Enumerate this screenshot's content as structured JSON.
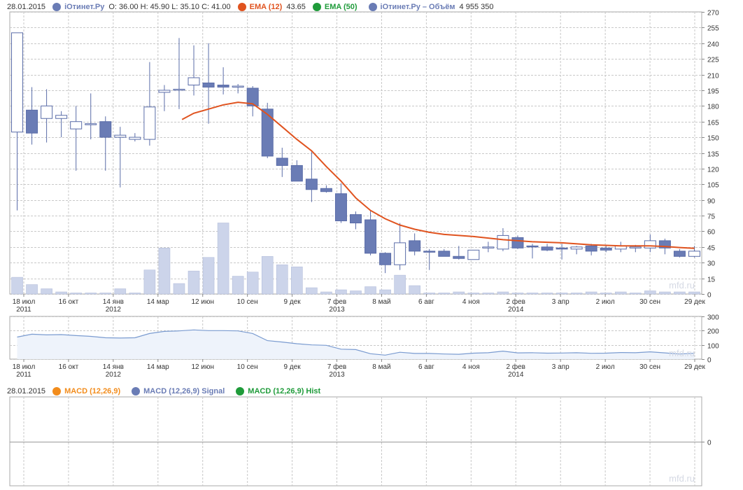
{
  "legend_top": {
    "date": "28.01.2015",
    "items": [
      {
        "name": "iОтинет.Ру",
        "values": "O: 36.00   H: 45.90   L: 35.10   C: 41.00",
        "color": "#6a7cb5"
      },
      {
        "name": "EMA (12)",
        "values": "43.65",
        "color": "#e0531f"
      },
      {
        "name": "EMA (50)",
        "values": "",
        "color": "#1f9b3a"
      },
      {
        "name": "iОтинет.Ру – Объём",
        "values": "4 955 350",
        "color": "#6a7cb5"
      }
    ]
  },
  "legend_bottom": {
    "date": "28.01.2015",
    "items": [
      {
        "name": "MACD (12,26,9)",
        "color": "#f28c1c"
      },
      {
        "name": "MACD (12,26,9) Signal",
        "color": "#6a7cb5"
      },
      {
        "name": "MACD (12,26,9) Hist",
        "color": "#1f9b3a"
      }
    ]
  },
  "watermark": "mfd.ru",
  "colors": {
    "down": "#6a7cb5",
    "up": "#ffffff",
    "outline": "#5a6ca8",
    "ema": "#e0531f",
    "volume": "#ccd4ea",
    "nav_fill": "#eef3fb",
    "nav_line": "#7a9bd0",
    "grid": "#c8c8c8"
  },
  "x_labels": [
    {
      "t": "18 июл",
      "sub": "2011"
    },
    {
      "t": "16 окт",
      "sub": ""
    },
    {
      "t": "14 янв",
      "sub": "2012"
    },
    {
      "t": "14 мар",
      "sub": ""
    },
    {
      "t": "12 июн",
      "sub": ""
    },
    {
      "t": "10 сен",
      "sub": ""
    },
    {
      "t": "9 дек",
      "sub": ""
    },
    {
      "t": "7 фев",
      "sub": "2013"
    },
    {
      "t": "8 май",
      "sub": ""
    },
    {
      "t": "6 авг",
      "sub": ""
    },
    {
      "t": "4 ноя",
      "sub": ""
    },
    {
      "t": "2 фев",
      "sub": "2014"
    },
    {
      "t": "3 апр",
      "sub": ""
    },
    {
      "t": "2 июл",
      "sub": ""
    },
    {
      "t": "30 сен",
      "sub": ""
    },
    {
      "t": "29 дек",
      "sub": ""
    }
  ],
  "chart_data": [
    {
      "type": "candlestick",
      "title": "iОтинет.Ру",
      "ylim": [
        0,
        270
      ],
      "yticks": [
        0,
        15,
        30,
        45,
        60,
        75,
        90,
        105,
        120,
        135,
        150,
        165,
        180,
        195,
        210,
        225,
        240,
        255,
        270
      ],
      "candles": [
        {
          "o": 155,
          "h": 250,
          "l": 80,
          "c": 250
        },
        {
          "o": 176,
          "h": 198,
          "l": 143,
          "c": 154
        },
        {
          "o": 168,
          "h": 196,
          "l": 145,
          "c": 180
        },
        {
          "o": 168,
          "h": 175,
          "l": 150,
          "c": 171
        },
        {
          "o": 158,
          "h": 180,
          "l": 118,
          "c": 165
        },
        {
          "o": 162,
          "h": 192,
          "l": 148,
          "c": 163
        },
        {
          "o": 165,
          "h": 170,
          "l": 118,
          "c": 150
        },
        {
          "o": 150,
          "h": 160,
          "l": 102,
          "c": 152
        },
        {
          "o": 148,
          "h": 154,
          "l": 146,
          "c": 150
        },
        {
          "o": 148,
          "h": 222,
          "l": 142,
          "c": 179
        },
        {
          "o": 193,
          "h": 200,
          "l": 175,
          "c": 195
        },
        {
          "o": 195,
          "h": 245,
          "l": 177,
          "c": 196
        },
        {
          "o": 200,
          "h": 238,
          "l": 190,
          "c": 207
        },
        {
          "o": 202,
          "h": 240,
          "l": 163,
          "c": 198
        },
        {
          "o": 200,
          "h": 217,
          "l": 191,
          "c": 198
        },
        {
          "o": 198,
          "h": 201,
          "l": 192,
          "c": 199
        },
        {
          "o": 197,
          "h": 199,
          "l": 170,
          "c": 180
        },
        {
          "o": 177,
          "h": 183,
          "l": 130,
          "c": 132
        },
        {
          "o": 130,
          "h": 140,
          "l": 112,
          "c": 123
        },
        {
          "o": 123,
          "h": 128,
          "l": 108,
          "c": 108
        },
        {
          "o": 110,
          "h": 137,
          "l": 88,
          "c": 100
        },
        {
          "o": 101,
          "h": 104,
          "l": 97,
          "c": 98
        },
        {
          "o": 96,
          "h": 106,
          "l": 68,
          "c": 70
        },
        {
          "o": 76,
          "h": 79,
          "l": 62,
          "c": 68
        },
        {
          "o": 71,
          "h": 80,
          "l": 37,
          "c": 39
        },
        {
          "o": 39,
          "h": 40,
          "l": 20,
          "c": 28
        },
        {
          "o": 28,
          "h": 68,
          "l": 23,
          "c": 49
        },
        {
          "o": 51,
          "h": 58,
          "l": 37,
          "c": 41
        },
        {
          "o": 41,
          "h": 43,
          "l": 23,
          "c": 40
        },
        {
          "o": 41,
          "h": 43,
          "l": 36,
          "c": 36
        },
        {
          "o": 36,
          "h": 46,
          "l": 33,
          "c": 34
        },
        {
          "o": 33,
          "h": 42,
          "l": 33,
          "c": 42
        },
        {
          "o": 44,
          "h": 50,
          "l": 40,
          "c": 45
        },
        {
          "o": 43,
          "h": 63,
          "l": 41,
          "c": 56
        },
        {
          "o": 54,
          "h": 56,
          "l": 43,
          "c": 44
        },
        {
          "o": 46,
          "h": 48,
          "l": 34,
          "c": 45
        },
        {
          "o": 45,
          "h": 48,
          "l": 41,
          "c": 42
        },
        {
          "o": 44,
          "h": 48,
          "l": 33,
          "c": 43
        },
        {
          "o": 43,
          "h": 46,
          "l": 38,
          "c": 45
        },
        {
          "o": 46,
          "h": 48,
          "l": 37,
          "c": 41
        },
        {
          "o": 44,
          "h": 46,
          "l": 40,
          "c": 42
        },
        {
          "o": 43,
          "h": 50,
          "l": 40,
          "c": 46
        },
        {
          "o": 45,
          "h": 47,
          "l": 40,
          "c": 45
        },
        {
          "o": 44,
          "h": 57,
          "l": 40,
          "c": 51
        },
        {
          "o": 51,
          "h": 53,
          "l": 38,
          "c": 44
        },
        {
          "o": 41,
          "h": 43,
          "l": 35,
          "c": 36
        },
        {
          "o": 36,
          "h": 46,
          "l": 35,
          "c": 41
        }
      ],
      "ema12": [
        {
          "i": 11.2,
          "v": 167
        },
        {
          "i": 12,
          "v": 173
        },
        {
          "i": 13,
          "v": 177
        },
        {
          "i": 14,
          "v": 181
        },
        {
          "i": 15,
          "v": 183.5
        },
        {
          "i": 16,
          "v": 182
        },
        {
          "i": 17,
          "v": 172
        },
        {
          "i": 18,
          "v": 160
        },
        {
          "i": 19,
          "v": 148
        },
        {
          "i": 20,
          "v": 137
        },
        {
          "i": 21,
          "v": 122
        },
        {
          "i": 22,
          "v": 108
        },
        {
          "i": 23,
          "v": 92
        },
        {
          "i": 24,
          "v": 80
        },
        {
          "i": 25,
          "v": 72
        },
        {
          "i": 26,
          "v": 66
        },
        {
          "i": 27,
          "v": 62
        },
        {
          "i": 28,
          "v": 59
        },
        {
          "i": 29,
          "v": 57
        },
        {
          "i": 31,
          "v": 55
        },
        {
          "i": 33,
          "v": 52
        },
        {
          "i": 35,
          "v": 50
        },
        {
          "i": 37,
          "v": 49
        },
        {
          "i": 39,
          "v": 47
        },
        {
          "i": 41,
          "v": 46
        },
        {
          "i": 43,
          "v": 46
        },
        {
          "i": 44,
          "v": 45.5
        },
        {
          "i": 45,
          "v": 44.5
        },
        {
          "i": 46,
          "v": 43.65
        }
      ]
    },
    {
      "type": "bar",
      "title": "iОтинет.Ру – Объём",
      "values": [
        16,
        9,
        5,
        2,
        1,
        1,
        1,
        5,
        1,
        23,
        44,
        10,
        22,
        35,
        68,
        17,
        21,
        36,
        28,
        26,
        6,
        2,
        4,
        3,
        7,
        4,
        18,
        8,
        1,
        1,
        2,
        1,
        1,
        2,
        1,
        1,
        1,
        1,
        1,
        2,
        1,
        2,
        1,
        3,
        2,
        2,
        2
      ]
    },
    {
      "type": "area",
      "title": "navigator",
      "ylim": [
        0,
        300
      ],
      "yticks": [
        0,
        100,
        200,
        300
      ],
      "values": [
        155,
        175,
        170,
        172,
        165,
        160,
        150,
        148,
        150,
        180,
        195,
        198,
        205,
        200,
        200,
        198,
        180,
        130,
        120,
        108,
        100,
        97,
        70,
        67,
        38,
        28,
        48,
        40,
        40,
        36,
        34,
        42,
        45,
        56,
        44,
        45,
        42,
        43,
        45,
        41,
        42,
        46,
        45,
        51,
        44,
        36,
        41
      ]
    },
    {
      "type": "line",
      "title": "MACD (12,26,9)",
      "yticks": [
        0
      ],
      "series": []
    }
  ]
}
